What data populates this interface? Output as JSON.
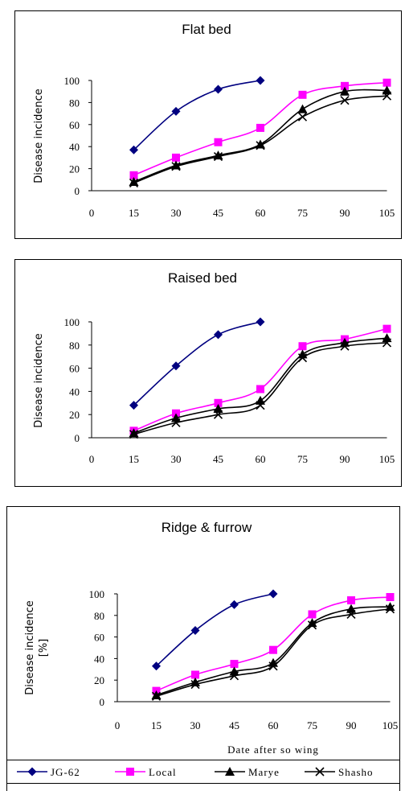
{
  "chart_data": [
    {
      "type": "line",
      "title": "Flat bed",
      "ylabel": "Disease incidence",
      "xlabel": "",
      "x": [
        15,
        30,
        45,
        60,
        75,
        90,
        105
      ],
      "xticks": [
        "0",
        "15",
        "30",
        "45",
        "60",
        "75",
        "90",
        "105"
      ],
      "yticks": [
        "0",
        "20",
        "40",
        "60",
        "80",
        "100"
      ],
      "xlim": [
        0,
        105
      ],
      "ylim": [
        0,
        100
      ],
      "series": [
        {
          "name": "JG-62",
          "values": [
            37,
            72,
            92,
            100,
            null,
            null,
            null
          ]
        },
        {
          "name": "Local",
          "values": [
            14,
            30,
            44,
            57,
            87,
            95,
            98
          ]
        },
        {
          "name": "Marye",
          "values": [
            8,
            23,
            32,
            42,
            74,
            90,
            91
          ]
        },
        {
          "name": "Shasho",
          "values": [
            7,
            22,
            31,
            41,
            67,
            82,
            86
          ]
        }
      ]
    },
    {
      "type": "line",
      "title": "Raised bed",
      "ylabel": "Disease incidence",
      "xlabel": "",
      "x": [
        15,
        30,
        45,
        60,
        75,
        90,
        105
      ],
      "xticks": [
        "0",
        "15",
        "30",
        "45",
        "60",
        "75",
        "90",
        "105"
      ],
      "yticks": [
        "0",
        "20",
        "40",
        "60",
        "80",
        "100"
      ],
      "xlim": [
        0,
        105
      ],
      "ylim": [
        0,
        100
      ],
      "series": [
        {
          "name": "JG-62",
          "values": [
            28,
            62,
            89,
            100,
            null,
            null,
            null
          ]
        },
        {
          "name": "Local",
          "values": [
            6,
            21,
            30,
            42,
            79,
            85,
            94
          ]
        },
        {
          "name": "Marye",
          "values": [
            4,
            17,
            25,
            32,
            72,
            82,
            86
          ]
        },
        {
          "name": "Shasho",
          "values": [
            3,
            13,
            20,
            28,
            69,
            79,
            82
          ]
        }
      ]
    },
    {
      "type": "line",
      "title": "Ridge & furrow",
      "ylabel": "Disease incidence [%]",
      "xlabel": "Date after so wing",
      "x": [
        15,
        30,
        45,
        60,
        75,
        90,
        105
      ],
      "xticks": [
        "0",
        "15",
        "30",
        "45",
        "60",
        "75",
        "90",
        "105"
      ],
      "yticks": [
        "0",
        "20",
        "40",
        "60",
        "80",
        "100"
      ],
      "xlim": [
        0,
        105
      ],
      "ylim": [
        0,
        100
      ],
      "series": [
        {
          "name": "JG-62",
          "values": [
            33,
            66,
            90,
            100,
            null,
            null,
            null
          ]
        },
        {
          "name": "Local",
          "values": [
            10,
            25,
            35,
            48,
            81,
            94,
            97
          ]
        },
        {
          "name": "Marye",
          "values": [
            6,
            18,
            28,
            36,
            73,
            86,
            88
          ]
        },
        {
          "name": "Shasho",
          "values": [
            5,
            16,
            24,
            33,
            71,
            81,
            86
          ]
        }
      ]
    }
  ],
  "legend": {
    "entries": [
      {
        "label": "JG-62",
        "color": "#000080",
        "marker": "diamond"
      },
      {
        "label": "Local",
        "color": "#ff00ff",
        "marker": "square"
      },
      {
        "label": "Marye",
        "color": "#000000",
        "marker": "triangle"
      },
      {
        "label": "Shasho",
        "color": "#000000",
        "marker": "x"
      }
    ]
  },
  "colors": {
    "JG-62": "#000080",
    "Local": "#ff00ff",
    "Marye": "#000000",
    "Shasho": "#000000"
  }
}
